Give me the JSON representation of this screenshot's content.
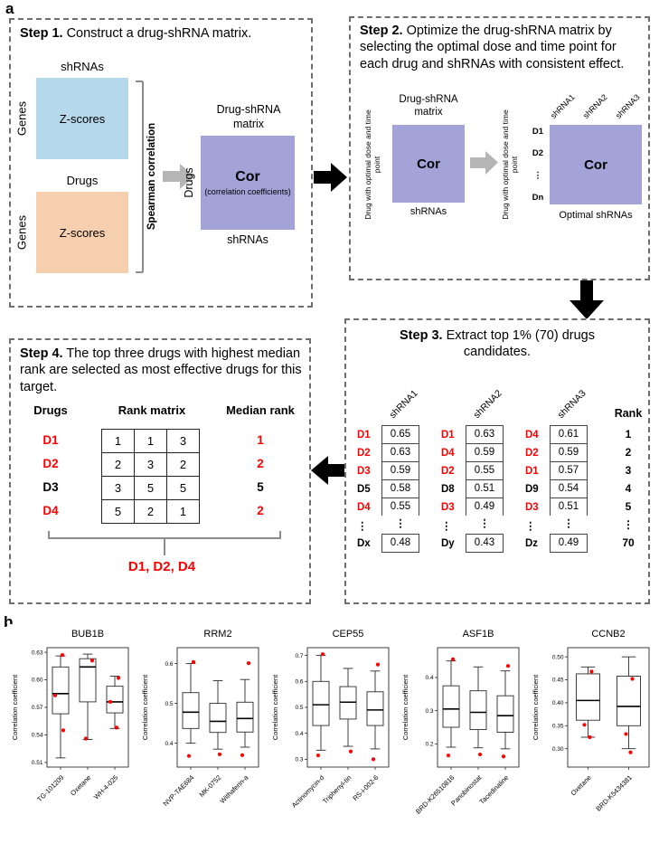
{
  "colors": {
    "blue_matrix": "#b5d8ea",
    "orange_matrix": "#f6cfae",
    "purple_matrix": "#a3a3d8",
    "red_text": "#ff0000",
    "gray_arrow": "#b5b5b5",
    "black_arrow": "#000000"
  },
  "panel_a": {
    "label": "a",
    "step1": {
      "title_bold": "Step 1.",
      "title_rest": " Construct a drug-shRNA matrix.",
      "shrna_top": "shRNAs",
      "drugs_top": "Drugs",
      "genes_label": "Genes",
      "zscores_label": "Z-scores",
      "spearman": "Spearman correlation",
      "cor_title_line1": "Drug-shRNA",
      "cor_title_line2": "matrix",
      "cor_main": "Cor",
      "cor_sub": "(correlation coefficients)",
      "cor_left": "Drugs",
      "cor_bottom": "shRNAs"
    },
    "step2": {
      "title_bold": "Step 2.",
      "title_rest": " Optimize the drug-shRNA matrix by selecting the optimal dose and time point for each drug and shRNAs with consistent effect.",
      "left_title_line1": "Drug-shRNA",
      "left_title_line2": "matrix",
      "left_rot": "Drug with optimal dose and time point",
      "left_cell": "Cor",
      "left_bottom": "shRNAs",
      "right_rot": "Drug with optimal dose and time point",
      "right_cell": "Cor",
      "right_rows": [
        "D1",
        "D2",
        "⋮",
        "Dn"
      ],
      "right_cols": [
        "shRNA1",
        "shRNA2",
        "shRNA3"
      ],
      "right_bottom": "Optimal shRNAs"
    },
    "step3": {
      "title_bold": "Step 3.",
      "title_rest": " Extract top 1% (70) drugs candidates.",
      "rank_header": "Rank",
      "ranks": [
        "1",
        "2",
        "3",
        "4",
        "5",
        "⋮",
        "70"
      ],
      "tables": [
        {
          "header": "shRNA1",
          "rows": [
            {
              "drug": "D1",
              "red": true,
              "value": "0.65"
            },
            {
              "drug": "D2",
              "red": true,
              "value": "0.63"
            },
            {
              "drug": "D3",
              "red": true,
              "value": "0.59"
            },
            {
              "drug": "D5",
              "red": false,
              "value": "0.58"
            },
            {
              "drug": "D4",
              "red": true,
              "value": "0.55"
            },
            {
              "drug": "⋮",
              "red": false,
              "value": "⋮",
              "dots": true
            },
            {
              "drug": "Dx",
              "red": false,
              "value": "0.48"
            }
          ]
        },
        {
          "header": "shRNA2",
          "rows": [
            {
              "drug": "D1",
              "red": true,
              "value": "0.63"
            },
            {
              "drug": "D4",
              "red": true,
              "value": "0.59"
            },
            {
              "drug": "D2",
              "red": true,
              "value": "0.55"
            },
            {
              "drug": "D8",
              "red": false,
              "value": "0.51"
            },
            {
              "drug": "D3",
              "red": true,
              "value": "0.49"
            },
            {
              "drug": "⋮",
              "red": false,
              "value": "⋮",
              "dots": true
            },
            {
              "drug": "Dy",
              "red": false,
              "value": "0.43"
            }
          ]
        },
        {
          "header": "shRNA3",
          "rows": [
            {
              "drug": "D4",
              "red": true,
              "value": "0.61"
            },
            {
              "drug": "D2",
              "red": true,
              "value": "0.59"
            },
            {
              "drug": "D1",
              "red": true,
              "value": "0.57"
            },
            {
              "drug": "D9",
              "red": false,
              "value": "0.54"
            },
            {
              "drug": "D3",
              "red": true,
              "value": "0.51"
            },
            {
              "drug": "⋮",
              "red": false,
              "value": "⋮",
              "dots": true
            },
            {
              "drug": "Dz",
              "red": false,
              "value": "0.49"
            }
          ]
        }
      ]
    },
    "step4": {
      "title_bold": "Step 4.",
      "title_rest": " The top three drugs with highest median rank are selected as most effective drugs for this target.",
      "col_drugs": "Drugs",
      "col_rank_matrix": "Rank matrix",
      "col_median": "Median rank",
      "rows": [
        {
          "drug": "D1",
          "red": true,
          "cells": [
            "1",
            "1",
            "3"
          ],
          "median": "1",
          "median_red": true
        },
        {
          "drug": "D2",
          "red": true,
          "cells": [
            "2",
            "3",
            "2"
          ],
          "median": "2",
          "median_red": true
        },
        {
          "drug": "D3",
          "red": false,
          "cells": [
            "3",
            "5",
            "5"
          ],
          "median": "5",
          "median_red": false
        },
        {
          "drug": "D4",
          "red": true,
          "cells": [
            "5",
            "2",
            "1"
          ],
          "median": "2",
          "median_red": true
        }
      ],
      "result": "D1, D2, D4"
    }
  },
  "panel_b": {
    "label": "b"
  },
  "chart_data": [
    {
      "type": "boxplot",
      "title": "BUB1B",
      "ylabel": "Correlation coefficient",
      "ylim": [
        0.505,
        0.635
      ],
      "yticks": [
        "0.51",
        "0.54",
        "0.57",
        "0.60",
        "0.63"
      ],
      "categories": [
        "TG-101209",
        "Oxetane",
        "WH-4-025"
      ],
      "boxes": [
        {
          "low": 0.515,
          "q1": 0.563,
          "median": 0.585,
          "q3": 0.614,
          "high": 0.626
        },
        {
          "low": 0.535,
          "q1": 0.576,
          "median": 0.614,
          "q3": 0.623,
          "high": 0.628
        },
        {
          "low": 0.547,
          "q1": 0.564,
          "median": 0.576,
          "q3": 0.593,
          "high": 0.604
        }
      ],
      "points": [
        {
          "cat": 0,
          "v": 0.627,
          "dx": 2
        },
        {
          "cat": 0,
          "v": 0.583,
          "dx": -6
        },
        {
          "cat": 0,
          "v": 0.545,
          "dx": 3
        },
        {
          "cat": 1,
          "v": 0.621,
          "dx": 5
        },
        {
          "cat": 1,
          "v": 0.536,
          "dx": -2
        },
        {
          "cat": 2,
          "v": 0.602,
          "dx": 4
        },
        {
          "cat": 2,
          "v": 0.576,
          "dx": -5
        },
        {
          "cat": 2,
          "v": 0.548,
          "dx": 2
        }
      ]
    },
    {
      "type": "boxplot",
      "title": "RRM2",
      "ylabel": "Correlation coefficient",
      "ylim": [
        0.34,
        0.64
      ],
      "yticks": [
        "0.4",
        "0.5",
        "0.6"
      ],
      "categories": [
        "NVP-TAE684",
        "MK-0752",
        "Withaferin-a"
      ],
      "boxes": [
        {
          "low": 0.4,
          "q1": 0.437,
          "median": 0.478,
          "q3": 0.527,
          "high": 0.6
        },
        {
          "low": 0.385,
          "q1": 0.427,
          "median": 0.455,
          "q3": 0.5,
          "high": 0.557
        },
        {
          "low": 0.39,
          "q1": 0.428,
          "median": 0.462,
          "q3": 0.503,
          "high": 0.56
        }
      ],
      "points": [
        {
          "cat": 0,
          "v": 0.604,
          "dx": 3
        },
        {
          "cat": 0,
          "v": 0.368,
          "dx": -2
        },
        {
          "cat": 1,
          "v": 0.372,
          "dx": 2
        },
        {
          "cat": 2,
          "v": 0.601,
          "dx": 4
        },
        {
          "cat": 2,
          "v": 0.37,
          "dx": -3
        }
      ]
    },
    {
      "type": "boxplot",
      "title": "CEP55",
      "ylabel": "Correlation coefficient",
      "ylim": [
        0.27,
        0.73
      ],
      "yticks": [
        "0.3",
        "0.4",
        "0.5",
        "0.6",
        "0.7"
      ],
      "categories": [
        "Actinomycin-d",
        "Triphenyl-tin",
        "RS-i-002-6"
      ],
      "boxes": [
        {
          "low": 0.335,
          "q1": 0.43,
          "median": 0.51,
          "q3": 0.6,
          "high": 0.7
        },
        {
          "low": 0.35,
          "q1": 0.455,
          "median": 0.52,
          "q3": 0.58,
          "high": 0.65
        },
        {
          "low": 0.34,
          "q1": 0.43,
          "median": 0.49,
          "q3": 0.56,
          "high": 0.64
        }
      ],
      "points": [
        {
          "cat": 0,
          "v": 0.705,
          "dx": 2
        },
        {
          "cat": 0,
          "v": 0.315,
          "dx": -3
        },
        {
          "cat": 1,
          "v": 0.33,
          "dx": 3
        },
        {
          "cat": 2,
          "v": 0.665,
          "dx": 3
        },
        {
          "cat": 2,
          "v": 0.3,
          "dx": -2
        }
      ]
    },
    {
      "type": "boxplot",
      "title": "ASF1B",
      "ylabel": "Correlation coefficient",
      "ylim": [
        0.13,
        0.49
      ],
      "yticks": [
        "0.2",
        "0.3",
        "0.4"
      ],
      "categories": [
        "BRD-K26510816",
        "Panobinostat",
        "Tacedinaline"
      ],
      "boxes": [
        {
          "low": 0.19,
          "q1": 0.25,
          "median": 0.305,
          "q3": 0.375,
          "high": 0.45
        },
        {
          "low": 0.188,
          "q1": 0.243,
          "median": 0.295,
          "q3": 0.36,
          "high": 0.432
        },
        {
          "low": 0.185,
          "q1": 0.235,
          "median": 0.285,
          "q3": 0.345,
          "high": 0.42
        }
      ],
      "points": [
        {
          "cat": 0,
          "v": 0.455,
          "dx": 2
        },
        {
          "cat": 0,
          "v": 0.165,
          "dx": -3
        },
        {
          "cat": 1,
          "v": 0.168,
          "dx": 2
        },
        {
          "cat": 2,
          "v": 0.435,
          "dx": 3
        },
        {
          "cat": 2,
          "v": 0.162,
          "dx": -2
        }
      ]
    },
    {
      "type": "boxplot",
      "title": "CCNB2",
      "ylabel": "Correlation coefficient",
      "ylim": [
        0.26,
        0.52
      ],
      "yticks": [
        "0.30",
        "0.35",
        "0.40",
        "0.45",
        "0.50"
      ],
      "categories": [
        "Oxetane",
        "BRD-K5434381"
      ],
      "boxes": [
        {
          "low": 0.325,
          "q1": 0.362,
          "median": 0.405,
          "q3": 0.463,
          "high": 0.478
        },
        {
          "low": 0.3,
          "q1": 0.35,
          "median": 0.392,
          "q3": 0.458,
          "high": 0.5
        }
      ],
      "points": [
        {
          "cat": 0,
          "v": 0.468,
          "dx": 4
        },
        {
          "cat": 0,
          "v": 0.352,
          "dx": -4
        },
        {
          "cat": 0,
          "v": 0.325,
          "dx": 2
        },
        {
          "cat": 1,
          "v": 0.452,
          "dx": 4
        },
        {
          "cat": 1,
          "v": 0.332,
          "dx": -3
        },
        {
          "cat": 1,
          "v": 0.292,
          "dx": 2
        }
      ]
    }
  ]
}
